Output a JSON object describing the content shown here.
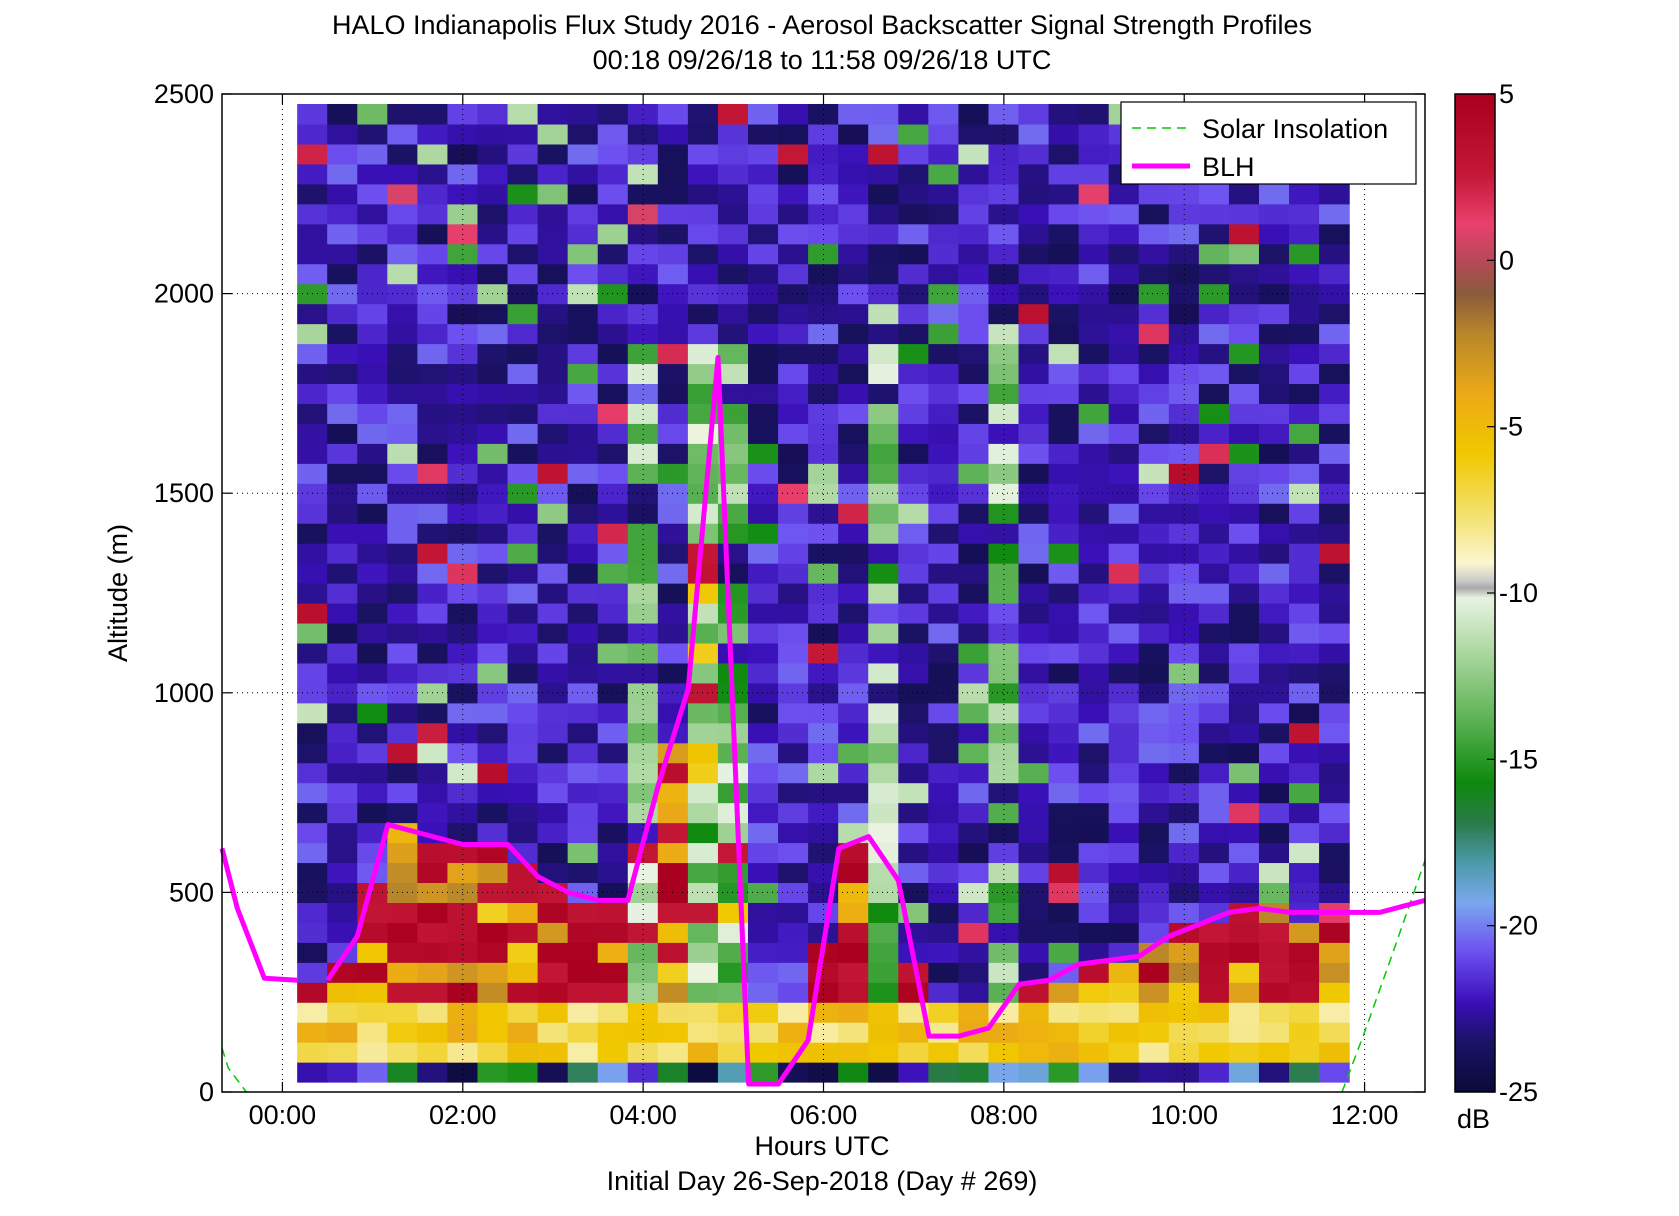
{
  "chart_data": {
    "type": "heatmap",
    "title": "HALO Indianapolis Flux Study 2016 - Aerosol Backscatter Signal Strength Profiles",
    "subtitle": "00:18 09/26/18 to 11:58 09/26/18  UTC",
    "xlabel": "Hours UTC",
    "xlabel2": "Initial Day 26-Sep-2018 (Day # 269)",
    "ylabel": "Altitude (m)",
    "colorbar_unit": "dB",
    "xlim": [
      -0.67,
      12.67
    ],
    "ylim": [
      0,
      2500
    ],
    "xticks": [
      0,
      2,
      4,
      6,
      8,
      10,
      12
    ],
    "xtick_labels": [
      "00:00",
      "02:00",
      "04:00",
      "06:00",
      "08:00",
      "10:00",
      "12:00"
    ],
    "yticks": [
      0,
      500,
      1000,
      1500,
      2000,
      2500
    ],
    "ytick_labels": [
      "0",
      "500",
      "1000",
      "1500",
      "2000",
      "2500"
    ],
    "clim": [
      -25,
      5
    ],
    "cbar_ticks": [
      5,
      0,
      -5,
      -10,
      -15,
      -20,
      -25
    ],
    "cbar_tick_labels": [
      "5",
      "0",
      "-5",
      "-10",
      "-15",
      "-20",
      "-25"
    ],
    "grid": "dotted",
    "legend_position": "top-right",
    "legend": [
      "Solar Insolation",
      "BLH"
    ],
    "colors": {
      "blh": "#ff00ff",
      "solar": "#00cc00"
    },
    "heatmap": {
      "x_start": 0.33,
      "x_step": 0.3333,
      "y_start": 50,
      "y_step": 50,
      "note_columns": "each row lists dB values from x_start in x_step increments"
    },
    "blh": {
      "name": "BLH",
      "segments": [
        {
          "x": [
            -0.67,
            -0.5,
            -0.2,
            0.17
          ],
          "y": [
            610,
            460,
            285,
            280
          ]
        },
        {
          "x": [
            0.5,
            0.83,
            1.17,
            1.5,
            2.0,
            2.5,
            2.83,
            3.17,
            3.5,
            3.83,
            4.17,
            4.5,
            4.83,
            5.17,
            5.5,
            5.83,
            6.17,
            6.5,
            6.83,
            7.17,
            7.5,
            7.83,
            8.17,
            8.5,
            8.83,
            9.17,
            9.5,
            9.83,
            10.17,
            10.5,
            10.83,
            11.17,
            11.5,
            11.83,
            12.17,
            12.67
          ],
          "y": [
            280,
            390,
            670,
            650,
            620,
            620,
            540,
            500,
            480,
            480,
            770,
            1010,
            1840,
            20,
            20,
            130,
            610,
            640,
            530,
            140,
            140,
            160,
            270,
            280,
            320,
            330,
            340,
            390,
            420,
            450,
            460,
            450,
            450,
            450,
            450,
            480
          ]
        }
      ]
    },
    "solar_insolation": {
      "name": "Solar Insolation",
      "segments": [
        {
          "x": [
            -0.67,
            -0.6,
            -0.4
          ],
          "y": [
            110,
            60,
            0
          ]
        },
        {
          "x": [
            11.75,
            12.0,
            12.3,
            12.67
          ],
          "y": [
            0,
            150,
            340,
            580
          ]
        }
      ]
    }
  }
}
